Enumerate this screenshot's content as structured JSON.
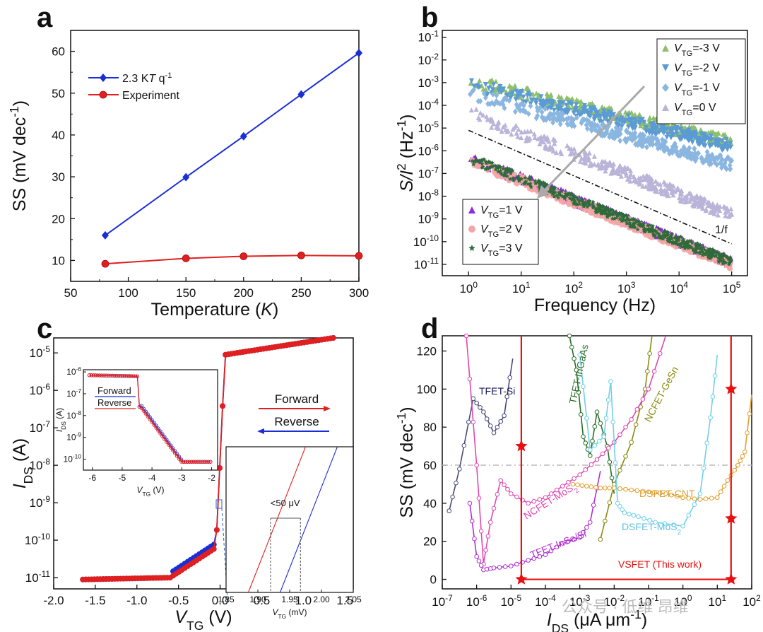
{
  "chart_data": [
    {
      "panel": "a",
      "type": "line",
      "xlabel": "Temperature",
      "xlabel_unit": "K",
      "ylabel": "SS (mV dec",
      "ylabel_sup": "-1",
      "ylabel_end": ")",
      "xlim": [
        50,
        300
      ],
      "ylim": [
        5,
        65
      ],
      "xticks": [
        50,
        100,
        150,
        200,
        250,
        300
      ],
      "yticks": [
        10,
        20,
        30,
        40,
        50,
        60
      ],
      "series": [
        {
          "name": "2.3 KT q",
          "name_sup": "-1",
          "color": "#1a2ed6",
          "marker": "diamond",
          "x": [
            80,
            150,
            200,
            250,
            300
          ],
          "y": [
            16.0,
            29.9,
            39.7,
            49.7,
            59.6
          ]
        },
        {
          "name": "Experiment",
          "color": "#e02020",
          "marker": "circle",
          "x": [
            80,
            150,
            200,
            250,
            300
          ],
          "y": [
            9.2,
            10.5,
            11.0,
            11.2,
            11.1
          ]
        }
      ]
    },
    {
      "panel": "b",
      "type": "scatter",
      "xlabel": "Frequency (Hz)",
      "ylabel": "S/I (Hz )",
      "xscale": "log",
      "yscale": "log",
      "xlim_exp": [
        -0.5,
        5.3
      ],
      "ylim_exp": [
        -11.5,
        -0.7
      ],
      "xticks_exp": [
        0,
        1,
        2,
        3,
        4,
        5
      ],
      "yticks_exp": [
        -11,
        -10,
        -9,
        -8,
        -7,
        -6,
        -5,
        -4,
        -3,
        -2,
        -1
      ],
      "reference_line": {
        "label": "1/f",
        "slope": -1,
        "y_at_1Hz_exp": -5.1
      },
      "series": [
        {
          "name": "V",
          "sub": "TG",
          "value": "=-3 V",
          "color": "#8ec06c",
          "y_at_1Hz_exp": -2.9,
          "y_at_1e5_exp": -5.6
        },
        {
          "name": "V",
          "sub": "TG",
          "value": "=-2 V",
          "color": "#5b9bd5",
          "y_at_1Hz_exp": -3.1,
          "y_at_1e5_exp": -5.8
        },
        {
          "name": "V",
          "sub": "TG",
          "value": "=-1 V",
          "color": "#8ab6e0",
          "y_at_1Hz_exp": -3.5,
          "y_at_1e5_exp": -6.6
        },
        {
          "name": "V",
          "sub": "TG",
          "value": "=0 V",
          "color": "#b9b4d8",
          "y_at_1Hz_exp": -4.3,
          "y_at_1e5_exp": -8.8
        },
        {
          "name": "V",
          "sub": "TG",
          "value": "=1 V",
          "color": "#8b2be2",
          "y_at_1Hz_exp": -6.3,
          "y_at_1e5_exp": -10.9
        },
        {
          "name": "V",
          "sub": "TG",
          "value": "=2 V",
          "color": "#f4a6a6",
          "y_at_1Hz_exp": -6.4,
          "y_at_1e5_exp": -11.0
        },
        {
          "name": "V",
          "sub": "TG",
          "value": "=3 V",
          "color": "#2e6b3a",
          "y_at_1Hz_exp": -6.3,
          "y_at_1e5_exp": -10.9
        }
      ]
    },
    {
      "panel": "c",
      "type": "line",
      "xlabel": "V",
      "xlabel_sub": "TG",
      "xlabel_end": " (V)",
      "ylabel": "I",
      "ylabel_sub": "DS",
      "ylabel_end": " (A)",
      "yscale": "log",
      "xlim": [
        -2.0,
        1.6
      ],
      "ylim_exp": [
        -11.3,
        -4.6
      ],
      "xticks": [
        -2.0,
        -1.5,
        -1.0,
        -0.5,
        0.0,
        0.5,
        1.0,
        1.5
      ],
      "yticks_exp": [
        -11,
        -10,
        -9,
        -8,
        -7,
        -6,
        -5
      ],
      "legend": [
        {
          "label": "Forward",
          "color": "#e02020"
        },
        {
          "label": "Reverse",
          "color": "#1a2ed6"
        }
      ],
      "inset_left": {
        "xlabel": "V",
        "xlabel_sub": "TG",
        "xlabel_end": " (V)",
        "ylabel": "I",
        "ylabel_sub": "DS",
        "ylabel_end": " (A)",
        "xlim": [
          -6.3,
          -1.8
        ],
        "ylim_exp": [
          -10.5,
          -5.9
        ],
        "xticks": [
          -6,
          -5,
          -4,
          -3,
          -2
        ],
        "yticks_exp": [
          -10,
          -9,
          -8,
          -7,
          -6
        ],
        "legend": [
          {
            "label": "Forward",
            "color": "#1a2ed6"
          },
          {
            "label": "Reverse",
            "color": "#e02020"
          }
        ]
      },
      "inset_right": {
        "xlabel": "V",
        "xlabel_sub": "TG",
        "xlabel_end": " (mV)",
        "xlim": [
          1.85,
          2.05
        ],
        "xticks": [
          "1.85",
          "1.90",
          "1.95",
          "2.00",
          "2.05"
        ],
        "annotation": "<50 μV"
      }
    },
    {
      "panel": "d",
      "type": "line",
      "xlabel": "I",
      "xlabel_sub": "DS",
      "xlabel_end": " (μA μm",
      "xlabel_sup": "-1",
      "xlabel_close": ")",
      "ylabel": "SS (mV dec",
      "ylabel_sup": "-1",
      "ylabel_end": ")",
      "xscale": "log",
      "xlim_exp": [
        -7,
        2
      ],
      "ylim": [
        -5,
        128
      ],
      "xticks_exp": [
        -7,
        -6,
        -5,
        -4,
        -3,
        -2,
        -1,
        0,
        1,
        2
      ],
      "yticks": [
        0,
        20,
        40,
        60,
        80,
        100,
        120
      ],
      "reference_y": 60,
      "series": [
        {
          "name": "TFET-Si",
          "color": "#4a4a7a",
          "x_exp": [
            -6.8,
            -6.5,
            -6.1,
            -5.8,
            -5.5,
            -5.2,
            -4.95
          ],
          "y": [
            36,
            58,
            95,
            88,
            77,
            86,
            116
          ]
        },
        {
          "name": "TFET-InGaAs",
          "color": "#2a6e2a",
          "x_exp": [
            -3.3,
            -3.1,
            -2.9,
            -2.7,
            -2.5,
            -2.2,
            -2.0
          ],
          "y": [
            128,
            110,
            75,
            65,
            88,
            70,
            45
          ]
        },
        {
          "name": "NCFET-GeSn",
          "color": "#8a8a10",
          "x_exp": [
            -2.4,
            -2.0,
            -1.5,
            -1.1,
            -0.9
          ],
          "y": [
            21,
            50,
            72,
            100,
            128
          ]
        },
        {
          "name": "NCFET-MoS",
          "sub": "2",
          "color": "#e048b0",
          "x_exp": [
            -6.3,
            -6.0,
            -5.8,
            -5.6,
            -5.3,
            -5.0,
            -4.5,
            -4.0,
            -3.5,
            -3.0,
            -2.5,
            -2.0,
            -1.5,
            -1.0,
            -0.5
          ],
          "y": [
            128,
            60,
            8,
            30,
            52,
            45,
            40,
            43,
            49,
            55,
            63,
            72,
            84,
            100,
            128
          ]
        },
        {
          "name": "TFET-InSe/Si",
          "color": "#b030d0",
          "x_exp": [
            -6.2,
            -6.0,
            -5.8,
            -5.5,
            -5.0,
            -4.5,
            -4.0,
            -3.5,
            -3.0,
            -2.7,
            -2.4
          ],
          "y": [
            40,
            12,
            5,
            6,
            7,
            10,
            13,
            19,
            22,
            30,
            57
          ]
        },
        {
          "name": "DSFET-CNT",
          "color": "#e0a030",
          "x_exp": [
            -3.2,
            -2.8,
            -2.4,
            -2.0,
            -1.5,
            -1.0,
            -0.5,
            0.0,
            0.5,
            1.0,
            1.3,
            1.6,
            1.8,
            2.0
          ],
          "y": [
            50,
            49,
            48,
            48,
            47,
            46,
            45,
            43,
            42,
            43,
            52,
            60,
            67,
            97
          ]
        },
        {
          "name": "DSFET-MoS",
          "sub": "2",
          "color": "#70d0e8",
          "x_exp": [
            -3.0,
            -2.7,
            -2.3,
            -2.1,
            -1.9,
            -1.7,
            -1.3,
            -0.8,
            0.0,
            0.5,
            0.8,
            1.0
          ],
          "y": [
            118,
            68,
            75,
            104,
            40,
            35,
            33,
            30,
            28,
            45,
            85,
            118
          ]
        },
        {
          "name": "VSFET (This work)",
          "color": "#e81010",
          "x_exp": [
            -4.7,
            -4.7,
            1.4,
            1.4
          ],
          "y": [
            128,
            0,
            0,
            128
          ]
        }
      ],
      "stars": [
        {
          "x_exp": -4.7,
          "y": 70
        },
        {
          "x_exp": -4.7,
          "y": 0
        },
        {
          "x_exp": 1.4,
          "y": 100
        },
        {
          "x_exp": 1.4,
          "y": 32
        },
        {
          "x_exp": 1.4,
          "y": 0
        }
      ]
    }
  ],
  "labels": {
    "a": "a",
    "b": "b",
    "c": "c",
    "d": "d",
    "watermark": "公众号 · 低维 昂维",
    "ref_line": "1/f"
  }
}
